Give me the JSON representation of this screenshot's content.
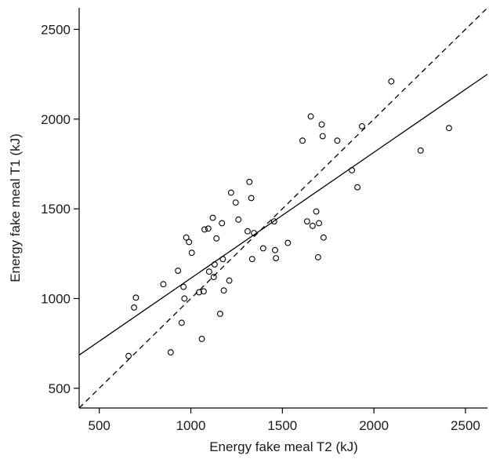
{
  "chart_data": {
    "type": "scatter",
    "title": "",
    "xlabel": "Energy fake meal T2 (kJ)",
    "ylabel": "Energy fake meal T1 (kJ)",
    "xlim": [
      390,
      2620
    ],
    "ylim": [
      390,
      2620
    ],
    "x_ticks": [
      500,
      1000,
      1500,
      2000,
      2500
    ],
    "y_ticks": [
      500,
      1000,
      1500,
      2000,
      2500
    ],
    "grid": false,
    "series": [
      {
        "points": [
          [
            660,
            680
          ],
          [
            690,
            950
          ],
          [
            700,
            1005
          ],
          [
            850,
            1080
          ],
          [
            890,
            700
          ],
          [
            930,
            1155
          ],
          [
            950,
            865
          ],
          [
            960,
            1065
          ],
          [
            965,
            1000
          ],
          [
            975,
            1340
          ],
          [
            990,
            1315
          ],
          [
            1005,
            1255
          ],
          [
            1045,
            1035
          ],
          [
            1060,
            775
          ],
          [
            1070,
            1040
          ],
          [
            1075,
            1385
          ],
          [
            1095,
            1390
          ],
          [
            1100,
            1150
          ],
          [
            1120,
            1450
          ],
          [
            1125,
            1120
          ],
          [
            1130,
            1190
          ],
          [
            1140,
            1335
          ],
          [
            1160,
            915
          ],
          [
            1170,
            1420
          ],
          [
            1175,
            1220
          ],
          [
            1180,
            1045
          ],
          [
            1210,
            1100
          ],
          [
            1220,
            1590
          ],
          [
            1245,
            1535
          ],
          [
            1260,
            1440
          ],
          [
            1310,
            1375
          ],
          [
            1320,
            1650
          ],
          [
            1330,
            1560
          ],
          [
            1335,
            1220
          ],
          [
            1345,
            1365
          ],
          [
            1395,
            1280
          ],
          [
            1455,
            1430
          ],
          [
            1460,
            1270
          ],
          [
            1465,
            1225
          ],
          [
            1530,
            1310
          ],
          [
            1610,
            1880
          ],
          [
            1635,
            1430
          ],
          [
            1655,
            2015
          ],
          [
            1665,
            1405
          ],
          [
            1685,
            1485
          ],
          [
            1695,
            1230
          ],
          [
            1700,
            1420
          ],
          [
            1715,
            1970
          ],
          [
            1720,
            1905
          ],
          [
            1725,
            1340
          ],
          [
            1800,
            1880
          ],
          [
            1880,
            1715
          ],
          [
            1910,
            1620
          ],
          [
            1935,
            1960
          ],
          [
            2095,
            2210
          ],
          [
            2255,
            1825
          ],
          [
            2410,
            1950
          ]
        ]
      }
    ],
    "fit_line": {
      "x": [
        390,
        2620
      ],
      "y": [
        685,
        2250
      ]
    },
    "identity_line": {
      "x": [
        390,
        2620
      ],
      "y": [
        390,
        2620
      ]
    }
  }
}
